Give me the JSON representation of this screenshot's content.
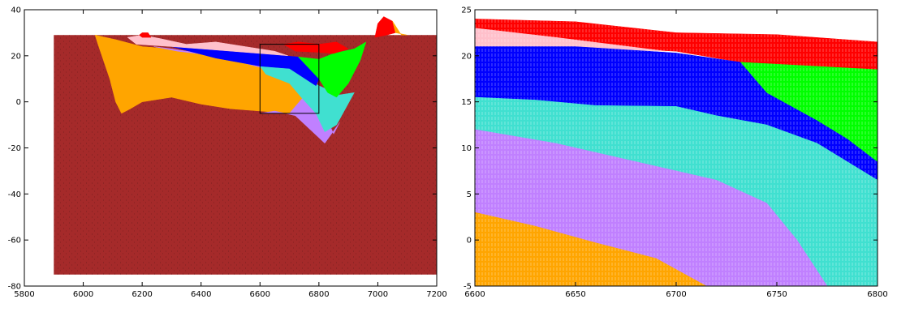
{
  "chart_data": [
    {
      "type": "area",
      "panel": "left-overview",
      "title": "",
      "xlabel": "",
      "ylabel": "",
      "xlim": [
        5800,
        7200
      ],
      "ylim": [
        -80,
        40
      ],
      "xticks": [
        5800,
        6000,
        6200,
        6400,
        6600,
        6800,
        7000,
        7200
      ],
      "yticks": [
        -80,
        -60,
        -40,
        -20,
        0,
        20,
        40
      ],
      "grid": false,
      "legend": "none",
      "background_layer": {
        "color": "#a52a2a",
        "x": [
          5900,
          7200
        ],
        "y": [
          -75,
          29
        ]
      },
      "inset_box": {
        "x": [
          6600,
          6800
        ],
        "y": [
          -5,
          25
        ]
      },
      "layers": [
        {
          "color": "#ffa500",
          "points": [
            [
              6040,
              29
            ],
            [
              6110,
              27
            ],
            [
              6200,
              24
            ],
            [
              6300,
              23
            ],
            [
              6450,
              20
            ],
            [
              6600,
              15
            ],
            [
              6700,
              11
            ],
            [
              6760,
              4
            ],
            [
              6800,
              -5
            ],
            [
              6700,
              -5
            ],
            [
              6600,
              -4
            ],
            [
              6500,
              -3
            ],
            [
              6400,
              -1
            ],
            [
              6300,
              2
            ],
            [
              6200,
              0
            ],
            [
              6160,
              -3
            ],
            [
              6130,
              -5
            ],
            [
              6110,
              0
            ],
            [
              6090,
              10
            ],
            [
              6050,
              25
            ]
          ]
        },
        {
          "color": "#c080ff",
          "points": [
            [
              6240,
              24
            ],
            [
              6320,
              22
            ],
            [
              6450,
              20
            ],
            [
              6600,
              18
            ],
            [
              6720,
              14
            ],
            [
              6790,
              8
            ],
            [
              6820,
              -5
            ],
            [
              6850,
              -14
            ],
            [
              6870,
              -9
            ],
            [
              6820,
              -18
            ],
            [
              6770,
              -12
            ],
            [
              6720,
              -6
            ],
            [
              6650,
              -4
            ],
            [
              6600,
              -5
            ],
            [
              6700,
              -5
            ],
            [
              6760,
              4
            ],
            [
              6700,
              11
            ],
            [
              6600,
              15
            ],
            [
              6450,
              20
            ],
            [
              6300,
              23
            ]
          ]
        },
        {
          "color": "#40e0d0",
          "points": [
            [
              6600,
              15.5
            ],
            [
              6700,
              14.5
            ],
            [
              6800,
              7
            ],
            [
              6870,
              3
            ],
            [
              6920,
              4
            ],
            [
              6860,
              -10
            ],
            [
              6820,
              -13
            ],
            [
              6790,
              -5
            ],
            [
              6740,
              2
            ],
            [
              6700,
              8
            ],
            [
              6620,
              12
            ]
          ]
        },
        {
          "color": "#0000ff",
          "points": [
            [
              6300,
              24
            ],
            [
              6450,
              22.5
            ],
            [
              6600,
              21
            ],
            [
              6730,
              19.5
            ],
            [
              6800,
              10
            ],
            [
              6790,
              7
            ],
            [
              6700,
              14.5
            ],
            [
              6600,
              15.5
            ],
            [
              6450,
              19
            ]
          ]
        },
        {
          "color": "#ffc0cb",
          "points": [
            [
              6150,
              28
            ],
            [
              6180,
              25
            ],
            [
              6300,
              24
            ],
            [
              6450,
              22.5
            ],
            [
              6600,
              21
            ],
            [
              6695,
              20
            ],
            [
              6650,
              22
            ],
            [
              6550,
              24
            ],
            [
              6450,
              26
            ],
            [
              6350,
              25
            ],
            [
              6260,
              27.5
            ],
            [
              6200,
              29
            ]
          ]
        },
        {
          "color": "#00ff00",
          "points": [
            [
              6730,
              19.5
            ],
            [
              6800,
              18.5
            ],
            [
              6850,
              21
            ],
            [
              6920,
              23
            ],
            [
              6960,
              26
            ],
            [
              6940,
              18
            ],
            [
              6900,
              8
            ],
            [
              6860,
              2
            ],
            [
              6830,
              4
            ],
            [
              6800,
              10
            ]
          ]
        },
        {
          "color": "#ff0000",
          "points": [
            [
              6680,
              25
            ],
            [
              6720,
              22
            ],
            [
              6800,
              21.5
            ],
            [
              6850,
              21
            ],
            [
              6900,
              23
            ],
            [
              6860,
              26
            ],
            [
              6800,
              25
            ],
            [
              6730,
              26
            ]
          ]
        },
        {
          "color": "#ff0000",
          "points": [
            [
              6990,
              28
            ],
            [
              7000,
              34
            ],
            [
              7020,
              37
            ],
            [
              7050,
              35
            ],
            [
              7060,
              30
            ],
            [
              7030,
              29
            ]
          ]
        },
        {
          "color": "#ffa500",
          "points": [
            [
              7050,
              35
            ],
            [
              7080,
              29
            ],
            [
              7100,
              29
            ],
            [
              7060,
              30
            ]
          ]
        },
        {
          "color": "#ff0000",
          "points": [
            [
              6190,
              29
            ],
            [
              6200,
              30
            ],
            [
              6220,
              30
            ],
            [
              6230,
              28
            ],
            [
              6200,
              28
            ]
          ]
        }
      ]
    },
    {
      "type": "area",
      "panel": "right-zoom",
      "title": "",
      "xlabel": "",
      "ylabel": "",
      "xlim": [
        6600,
        6800
      ],
      "ylim": [
        -5,
        25
      ],
      "xticks": [
        6600,
        6650,
        6700,
        6750,
        6800
      ],
      "yticks": [
        -5,
        0,
        5,
        10,
        15,
        20,
        25
      ],
      "grid": false,
      "legend": "none",
      "layers": [
        {
          "color": "#ff0000",
          "points": [
            [
              6600,
              24
            ],
            [
              6650,
              23.7
            ],
            [
              6700,
              22.5
            ],
            [
              6750,
              22.3
            ],
            [
              6800,
              21.5
            ],
            [
              6800,
              18.5
            ],
            [
              6732,
              19.3
            ],
            [
              6700,
              20.5
            ],
            [
              6650,
              21
            ],
            [
              6600,
              21
            ]
          ]
        },
        {
          "color": "#ffc0cb",
          "points": [
            [
              6600,
              23
            ],
            [
              6640,
              22
            ],
            [
              6695,
              20.5
            ],
            [
              6650,
              20.8
            ],
            [
              6600,
              21
            ]
          ]
        },
        {
          "color": "#0000ff",
          "points": [
            [
              6600,
              21
            ],
            [
              6650,
              21
            ],
            [
              6700,
              20.3
            ],
            [
              6732,
              19.3
            ],
            [
              6745,
              16
            ],
            [
              6770,
              13
            ],
            [
              6785,
              11
            ],
            [
              6800,
              8.5
            ],
            [
              6800,
              6.5
            ],
            [
              6770,
              10.5
            ],
            [
              6745,
              12.5
            ],
            [
              6720,
              13.5
            ],
            [
              6700,
              14.5
            ],
            [
              6660,
              14.6
            ],
            [
              6630,
              15.2
            ],
            [
              6600,
              15.5
            ]
          ]
        },
        {
          "color": "#00ff00",
          "points": [
            [
              6732,
              19.3
            ],
            [
              6800,
              18.5
            ],
            [
              6800,
              8.5
            ],
            [
              6785,
              11
            ],
            [
              6770,
              13
            ],
            [
              6745,
              16
            ]
          ]
        },
        {
          "color": "#40e0d0",
          "points": [
            [
              6600,
              15.5
            ],
            [
              6630,
              15.2
            ],
            [
              6660,
              14.6
            ],
            [
              6700,
              14.5
            ],
            [
              6720,
              13.5
            ],
            [
              6745,
              12.5
            ],
            [
              6770,
              10.5
            ],
            [
              6800,
              6.5
            ],
            [
              6800,
              -5
            ],
            [
              6775,
              -5
            ],
            [
              6760,
              0
            ],
            [
              6745,
              4
            ],
            [
              6720,
              6.5
            ],
            [
              6680,
              8.5
            ],
            [
              6640,
              10.5
            ],
            [
              6600,
              12
            ]
          ]
        },
        {
          "color": "#c080ff",
          "points": [
            [
              6600,
              12
            ],
            [
              6640,
              10.5
            ],
            [
              6680,
              8.5
            ],
            [
              6720,
              6.5
            ],
            [
              6745,
              4
            ],
            [
              6760,
              0
            ],
            [
              6775,
              -5
            ],
            [
              6715,
              -5
            ],
            [
              6690,
              -2
            ],
            [
              6660,
              -0.3
            ],
            [
              6630,
              1.5
            ],
            [
              6600,
              3
            ]
          ]
        },
        {
          "color": "#ffa500",
          "points": [
            [
              6600,
              3
            ],
            [
              6630,
              1.5
            ],
            [
              6660,
              -0.3
            ],
            [
              6690,
              -2
            ],
            [
              6715,
              -5
            ],
            [
              6600,
              -5
            ]
          ]
        }
      ]
    }
  ]
}
